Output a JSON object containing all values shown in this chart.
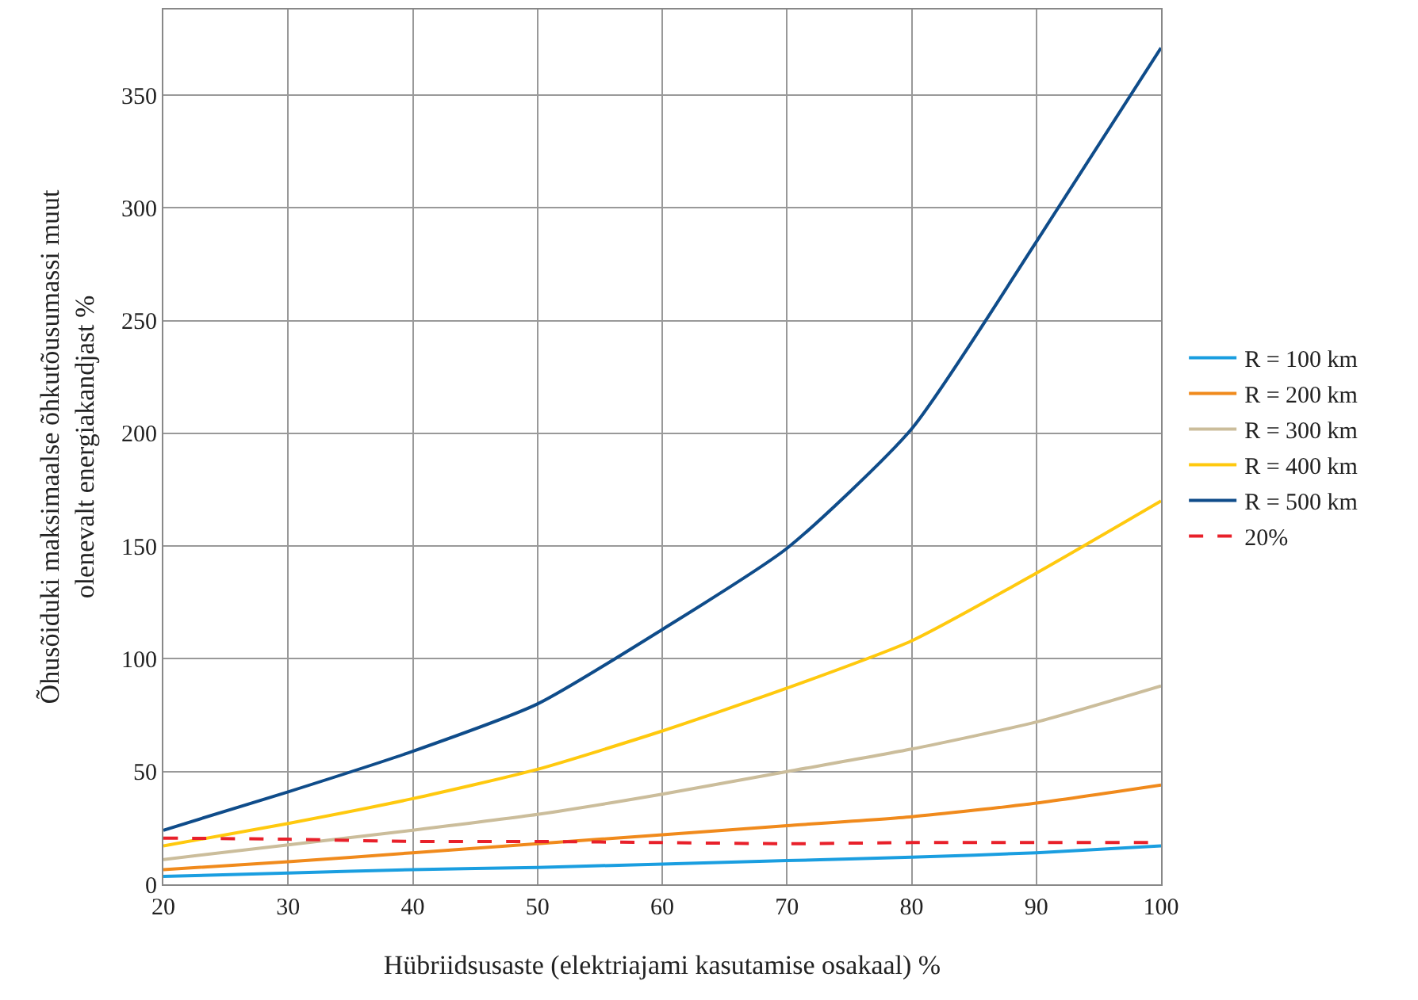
{
  "chart_data": {
    "type": "line",
    "xlabel": "Hübriidsusaste (elektriajami kasutamise osakaal) %",
    "ylabel": "Õhusõiduki maksimaalse õhkutõusumassi muut olenevalt energiakandjast %",
    "x": [
      20,
      30,
      40,
      50,
      60,
      70,
      80,
      90,
      100
    ],
    "series": [
      {
        "name": "R = 100 km",
        "color": "#1a9ee0",
        "values": [
          3.5,
          5,
          6.5,
          7.5,
          9,
          10.5,
          12,
          14,
          17
        ]
      },
      {
        "name": "R = 200 km",
        "color": "#f08a1c",
        "values": [
          6.5,
          10,
          14,
          18,
          22,
          26,
          30,
          36,
          44
        ]
      },
      {
        "name": "R = 300 km",
        "color": "#cbbd9b",
        "values": [
          11,
          17.5,
          24,
          31,
          40,
          50,
          60,
          72,
          88
        ]
      },
      {
        "name": "R = 400 km",
        "color": "#ffc90e",
        "values": [
          17,
          27,
          38,
          51,
          68,
          87,
          108,
          138,
          170
        ]
      },
      {
        "name": "R = 500 km",
        "color": "#0f4c8a",
        "values": [
          24,
          41,
          59,
          80,
          113,
          149,
          202,
          285,
          371
        ]
      },
      {
        "name": "20%",
        "color": "#e8202a",
        "line_style": "dashed",
        "values": [
          20.5,
          20,
          19,
          19,
          18.5,
          18,
          18.5,
          18.5,
          18.5
        ]
      }
    ],
    "xlim": [
      20,
      100
    ],
    "xticks": [
      20,
      30,
      40,
      50,
      60,
      70,
      80,
      90,
      100
    ],
    "ylim": [
      0,
      388
    ],
    "yticks": [
      0,
      50,
      100,
      150,
      200,
      250,
      300,
      350
    ],
    "grid": true,
    "legend": "right",
    "line_style": "solid",
    "marker": "none"
  }
}
